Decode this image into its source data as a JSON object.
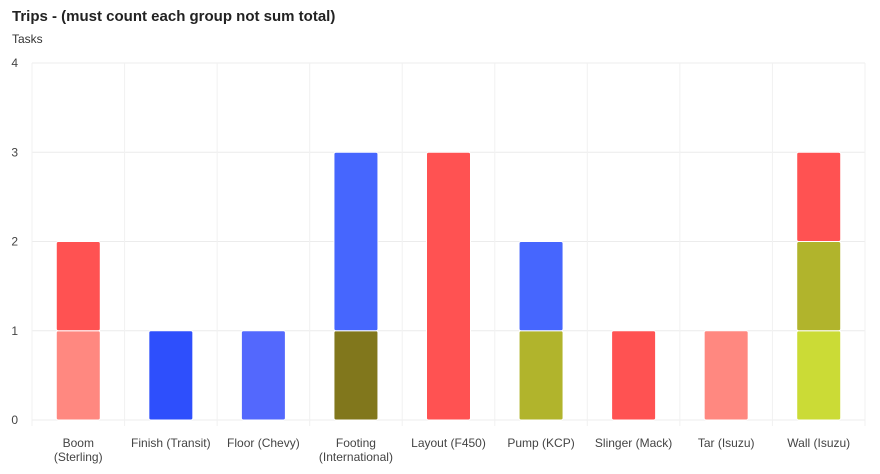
{
  "header": {
    "title": "Trips - (must count each group not sum total)",
    "subtitle": "Tasks"
  },
  "chart_data": {
    "type": "bar",
    "stacked": true,
    "title": "Trips - (must count each group not sum total)",
    "subtitle": "Tasks",
    "xlabel": "",
    "ylabel": "",
    "ylim": [
      0,
      4
    ],
    "y_ticks": [
      "0",
      "1",
      "2",
      "3",
      "4"
    ],
    "grid": true,
    "categories": [
      "Boom (Sterling)",
      "Finish (Transit)",
      "Floor (Chevy)",
      "Footing (International)",
      "Layout (F450)",
      "Pump (KCP)",
      "Slinger (Mack)",
      "Tar (Isuzu)",
      "Wall (Isuzu)"
    ],
    "category_lines": [
      [
        "Boom",
        "(Sterling)"
      ],
      [
        "Finish (Transit)"
      ],
      [
        "Floor (Chevy)"
      ],
      [
        "Footing",
        "(International)"
      ],
      [
        "Layout (F450)"
      ],
      [
        "Pump (KCP)"
      ],
      [
        "Slinger (Mack)"
      ],
      [
        "Tar (Isuzu)"
      ],
      [
        "Wall (Isuzu)"
      ]
    ],
    "stacks": [
      [
        {
          "value": 1,
          "color": "#ff8880"
        },
        {
          "value": 1,
          "color": "#ff5252"
        }
      ],
      [
        {
          "value": 1,
          "color": "#2e4ffc"
        }
      ],
      [
        {
          "value": 1,
          "color": "#5368fd"
        }
      ],
      [
        {
          "value": 1,
          "color": "#81771c"
        },
        {
          "value": 2,
          "color": "#4666fe"
        }
      ],
      [
        {
          "value": 3,
          "color": "#ff5252"
        }
      ],
      [
        {
          "value": 1,
          "color": "#b1b42c"
        },
        {
          "value": 1,
          "color": "#4666fe"
        }
      ],
      [
        {
          "value": 1,
          "color": "#ff5252"
        }
      ],
      [
        {
          "value": 1,
          "color": "#ff8880"
        }
      ],
      [
        {
          "value": 1,
          "color": "#cbdb36"
        },
        {
          "value": 1,
          "color": "#b1b42c"
        },
        {
          "value": 1,
          "color": "#ff5252"
        }
      ]
    ]
  }
}
